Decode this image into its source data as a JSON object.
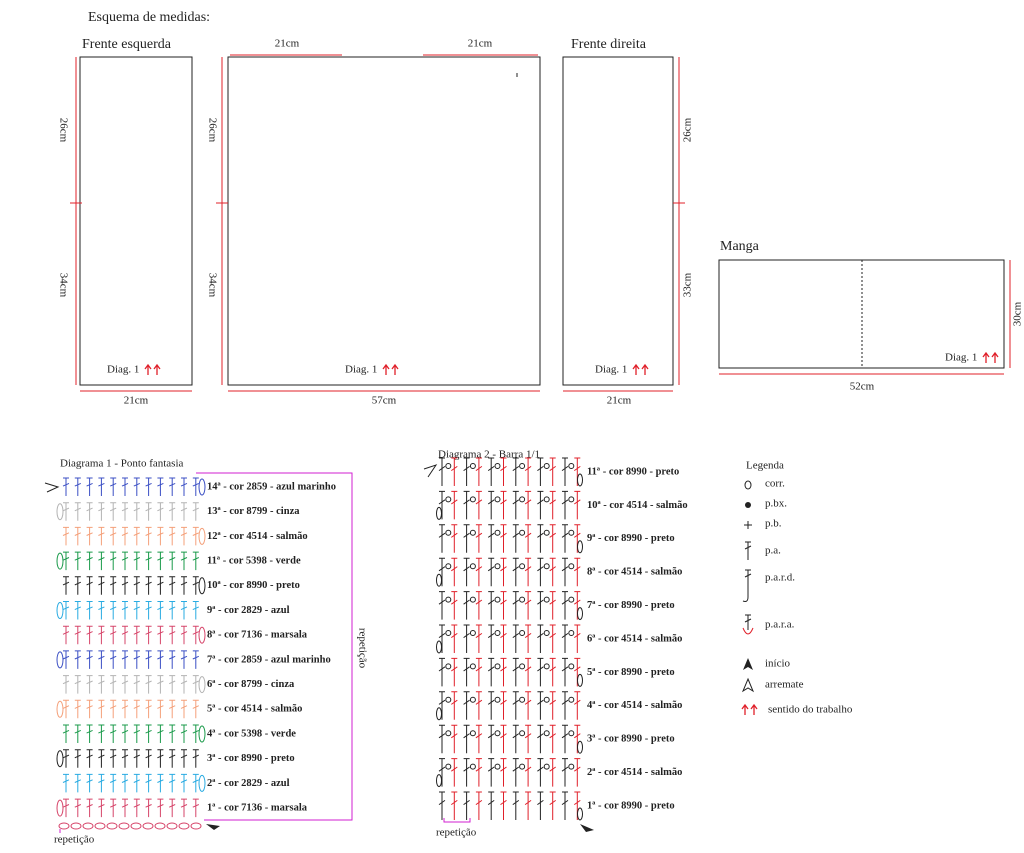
{
  "measurements": {
    "title": "Esquema de medidas:",
    "left_front": {
      "title": "Frente esquerda",
      "upper": "26cm",
      "lower": "34cm",
      "width": "21cm",
      "diagram": "Diag. 1"
    },
    "back": {
      "top_left": "21cm",
      "top_right": "21cm",
      "upper": "26cm",
      "lower": "34cm",
      "width": "57cm",
      "diagram": "Diag. 1"
    },
    "right_front": {
      "title": "Frente direita",
      "upper": "26cm",
      "lower": "33cm",
      "width": "21cm",
      "diagram": "Diag. 1"
    },
    "sleeve": {
      "title": "Manga",
      "height": "30cm",
      "width": "52cm",
      "diagram": "Diag. 1"
    }
  },
  "diagram1": {
    "title": "Diagrama 1 - Ponto fantasia",
    "rows": [
      {
        "label": "1ª - cor 7136 - marsala",
        "color": "#d6456a"
      },
      {
        "label": "2ª - cor 2829 - azul",
        "color": "#29abe2"
      },
      {
        "label": "3ª - cor 8990 - preto",
        "color": "#222222"
      },
      {
        "label": "4ª - cor 5398 - verde",
        "color": "#1a9a4a"
      },
      {
        "label": "5ª - cor 4514 - salmão",
        "color": "#f4a07a"
      },
      {
        "label": "6ª - cor 8799 - cinza",
        "color": "#b3b3b3"
      },
      {
        "label": "7ª - cor 2859 - azul marinho",
        "color": "#3b4fc4"
      },
      {
        "label": "8ª - cor 7136 - marsala",
        "color": "#d6456a"
      },
      {
        "label": "9ª - cor 2829 - azul",
        "color": "#29abe2"
      },
      {
        "label": "10ª - cor 8990 - preto",
        "color": "#222222"
      },
      {
        "label": "11ª - cor 5398 - verde",
        "color": "#1a9a4a"
      },
      {
        "label": "12ª - cor 4514 - salmão",
        "color": "#f4a07a"
      },
      {
        "label": "13ª - cor 8799 - cinza",
        "color": "#b3b3b3"
      },
      {
        "label": "14ª - cor 2859 - azul marinho",
        "color": "#3b4fc4"
      }
    ],
    "repeat_side": "repetição",
    "repeat_bottom": "repetição"
  },
  "diagram2": {
    "title": "Diagrama 2 - Barra 1/1",
    "rows": [
      "1ª - cor 8990 - preto",
      "2ª - cor 4514 - salmão",
      "3ª - cor 8990 - preto",
      "4ª - cor 4514 - salmão",
      "5ª - cor 8990 - preto",
      "6ª - cor 4514 - salmão",
      "7ª - cor 8990 - preto",
      "8ª - cor 4514 - salmão",
      "9ª - cor 8990 - preto",
      "10ª - cor 4514 - salmão",
      "11ª - cor 8990 - preto"
    ],
    "repeat": "repetição"
  },
  "legend": {
    "title": "Legenda",
    "items": [
      "corr.",
      "p.bx.",
      "p.b.",
      "p.a.",
      "p.a.r.d.",
      "p.a.r.a.",
      "início",
      "arremate",
      "sentido do trabalho"
    ]
  }
}
